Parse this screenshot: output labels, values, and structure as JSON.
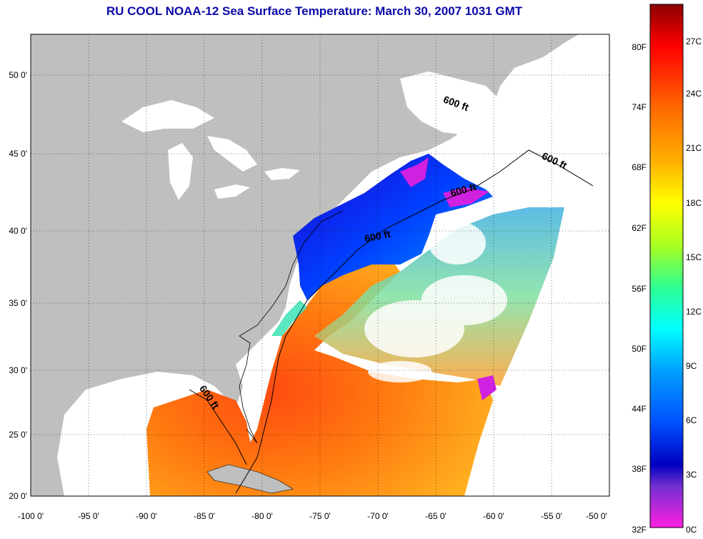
{
  "title": "RU COOL  NOAA-12  Sea Surface Temperature:  March 30, 2007 1031 GMT",
  "lon_ticks": [
    "-100 0'",
    "-95 0'",
    "-90 0'",
    "-85 0'",
    "-80 0'",
    "-75 0'",
    "-70 0'",
    "-65 0'",
    "-60 0'",
    "-55 0'",
    "-50 0'"
  ],
  "lat_ticks": [
    "50 0'",
    "45 0'",
    "40 0'",
    "35 0'",
    "30 0'",
    "25 0'",
    "20 0'"
  ],
  "contour_labels": [
    "600 ft",
    "600 ft",
    "600 ft",
    "600 ft",
    "600 ft"
  ],
  "colorbar": {
    "f_labels": [
      "80F",
      "74F",
      "68F",
      "62F",
      "56F",
      "50F",
      "44F",
      "38F",
      "32F"
    ],
    "c_labels": [
      "27C",
      "24C",
      "21C",
      "18C",
      "15C",
      "12C",
      "9C",
      "6C",
      "3C",
      "0C"
    ]
  },
  "colors": {
    "land": "#bfbfbf",
    "cloud_no_data": "#ffffff",
    "title": "#0a0aa8"
  }
}
